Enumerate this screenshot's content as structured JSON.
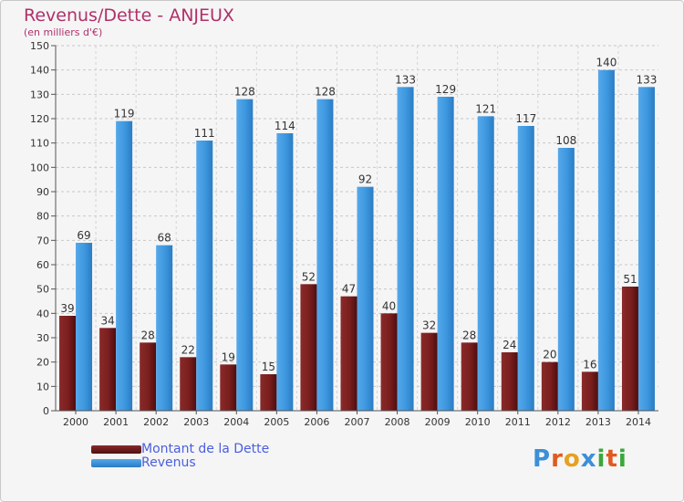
{
  "title": "Revenus/Dette - ANJEUX",
  "subtitle": "(en milliers d'€)",
  "colors": {
    "debt": "#7a1e1e",
    "revenue": "#3d97de",
    "title": "#b0306a",
    "legend_text": "#4a5ee0"
  },
  "legend": {
    "debt_label": "Montant de la Dette",
    "revenue_label": "Revenus"
  },
  "logo": {
    "letters": [
      "P",
      "r",
      "o",
      "x",
      "i",
      "t",
      "i"
    ],
    "colors": [
      "#3c8fd8",
      "#e05a20",
      "#e8a020",
      "#3c8fd8",
      "#3aa83a",
      "#e05a20",
      "#3aa83a"
    ]
  },
  "chart_data": {
    "type": "bar",
    "categories": [
      "2000",
      "2001",
      "2002",
      "2003",
      "2004",
      "2005",
      "2006",
      "2007",
      "2008",
      "2009",
      "2010",
      "2011",
      "2012",
      "2013",
      "2014"
    ],
    "series": [
      {
        "name": "Montant de la Dette",
        "values": [
          39,
          34,
          28,
          22,
          19,
          15,
          52,
          47,
          40,
          32,
          28,
          24,
          20,
          16,
          51
        ]
      },
      {
        "name": "Revenus",
        "values": [
          69,
          119,
          68,
          111,
          128,
          114,
          128,
          92,
          133,
          129,
          121,
          117,
          108,
          140,
          133
        ]
      }
    ],
    "ylim": [
      0,
      150
    ],
    "yticks": [
      0,
      10,
      20,
      30,
      40,
      50,
      60,
      70,
      80,
      90,
      100,
      110,
      120,
      130,
      140,
      150
    ],
    "grid": true
  }
}
